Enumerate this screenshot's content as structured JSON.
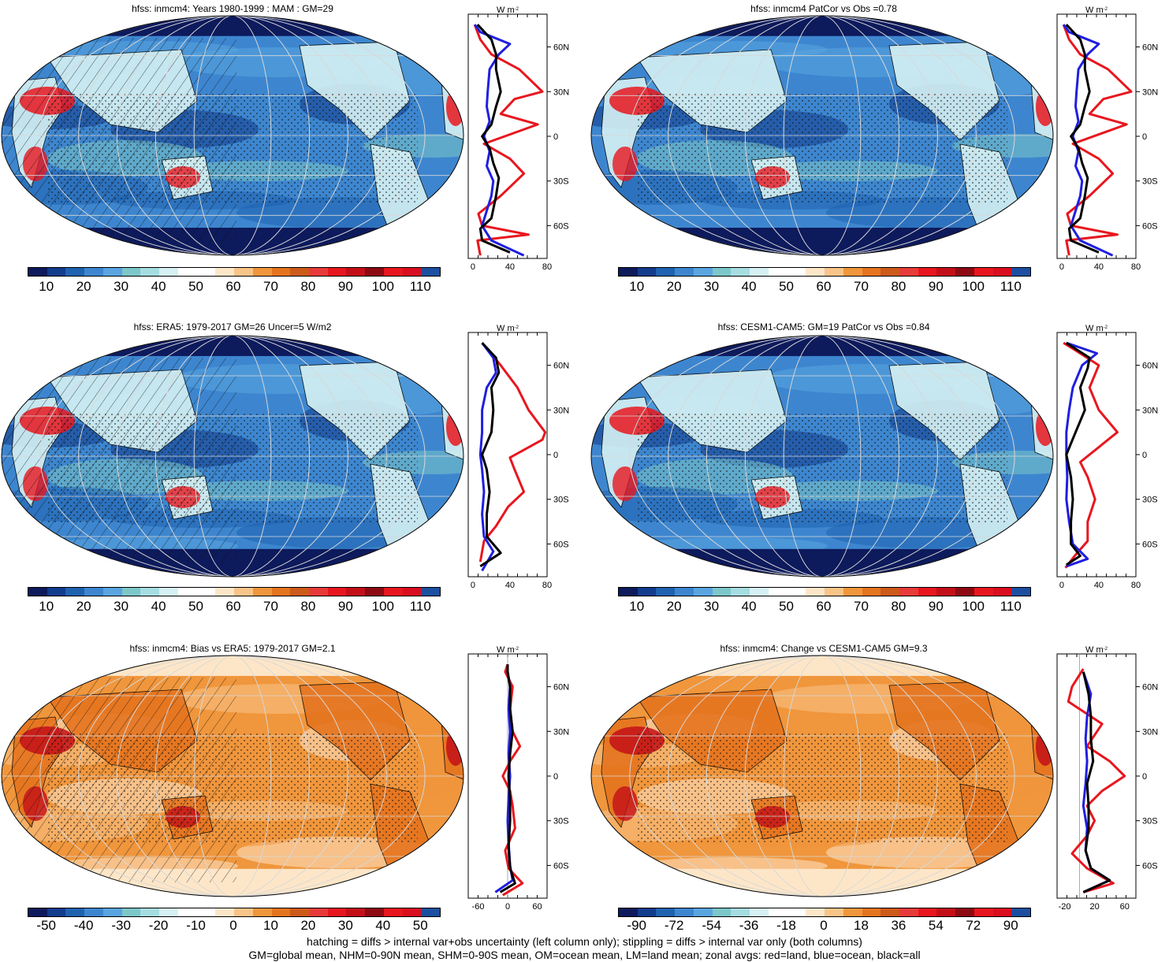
{
  "panels": [
    {
      "title": "hfss: inmcm4: Years 1980-1999 : MAM : GM=29",
      "palette": "abs",
      "profile": "p1",
      "xticks": [
        "0",
        "40",
        "80"
      ]
    },
    {
      "title": "hfss: inmcm4 PatCor vs Obs =0.78",
      "palette": "abs",
      "profile": "p2",
      "xticks": [
        "0",
        "40",
        "80"
      ]
    },
    {
      "title": "hfss: ERA5: 1979-2017 GM=26 Uncer=5 W/m2",
      "palette": "abs",
      "profile": "p3",
      "xticks": [
        "0",
        "40",
        "80"
      ]
    },
    {
      "title": "hfss: CESM1-CAM5: GM=19 PatCor vs Obs =0.84",
      "palette": "abs",
      "profile": "p4",
      "xticks": [
        "0",
        "40",
        "80"
      ]
    },
    {
      "title": "hfss: inmcm4: Bias vs ERA5: 1979-2017 GM=2.1",
      "palette": "diff",
      "profile": "p5",
      "xticks": [
        "-60",
        "0",
        "60"
      ]
    },
    {
      "title": "hfss: inmcm4: Change vs CESM1-CAM5 GM=9.3",
      "palette": "diff",
      "profile": "p6",
      "xticks": [
        "-20",
        "20",
        "60"
      ]
    }
  ],
  "zonal_units": "W m",
  "zonal_units_sup": "-2",
  "lat_labels": [
    "60N",
    "30N",
    "0",
    "30S",
    "60S"
  ],
  "colorbars": {
    "abs": {
      "labels": [
        "10",
        "20",
        "30",
        "40",
        "50",
        "60",
        "70",
        "80",
        "90",
        "100",
        "110"
      ],
      "colors": [
        "#0d1a5c",
        "#123c8c",
        "#1f62b0",
        "#3d86cf",
        "#5aa5e0",
        "#7cc7c9",
        "#a6dde0",
        "#d5f1f3",
        "#ffffff",
        "#ffffff",
        "#fde6c8",
        "#f9c488",
        "#f0963c",
        "#e5741f",
        "#cd5a1a",
        "#e83a3a",
        "#e8161e",
        "#c30f18",
        "#8e0a12",
        "#e8161e",
        "#d90e1e",
        "#1c4fa0"
      ]
    },
    "diff": {
      "labels": [
        "-50",
        "-40",
        "-30",
        "-20",
        "-10",
        "0",
        "10",
        "20",
        "30",
        "40",
        "50"
      ],
      "colors": [
        "#0d1a5c",
        "#123c8c",
        "#1f62b0",
        "#3d86cf",
        "#5aa5e0",
        "#7cc7c9",
        "#a6dde0",
        "#d5f1f3",
        "#ffffff",
        "#ffffff",
        "#fde6c8",
        "#f9c488",
        "#f0963c",
        "#e5741f",
        "#cd5a1a",
        "#e83a3a",
        "#e8161e",
        "#c30f18",
        "#8e0a12",
        "#e8161e",
        "#d90e1e",
        "#1c4fa0"
      ]
    },
    "change": {
      "labels": [
        "-90",
        "-72",
        "-54",
        "-36",
        "-18",
        "0",
        "18",
        "36",
        "54",
        "72",
        "90"
      ]
    }
  },
  "footer": {
    "line1": "hatching = diffs > internal var+obs uncertainty (left column only); stippling = diffs > internal var only (both columns)",
    "line2": "GM=global mean, NHM=0-90N mean, SHM=0-90S mean, OM=ocean mean, LM=land mean; zonal avgs: red=land, blue=ocean, black=all"
  },
  "line_colors": {
    "land": "#e8161e",
    "ocean": "#1f1fe0",
    "all": "#000000"
  },
  "map_colors": {
    "ocean_abs": "#3d86cf",
    "ocean_diff": "#f0963c",
    "polar": "#0d1a5c",
    "land_hot": "#e5741f"
  }
}
